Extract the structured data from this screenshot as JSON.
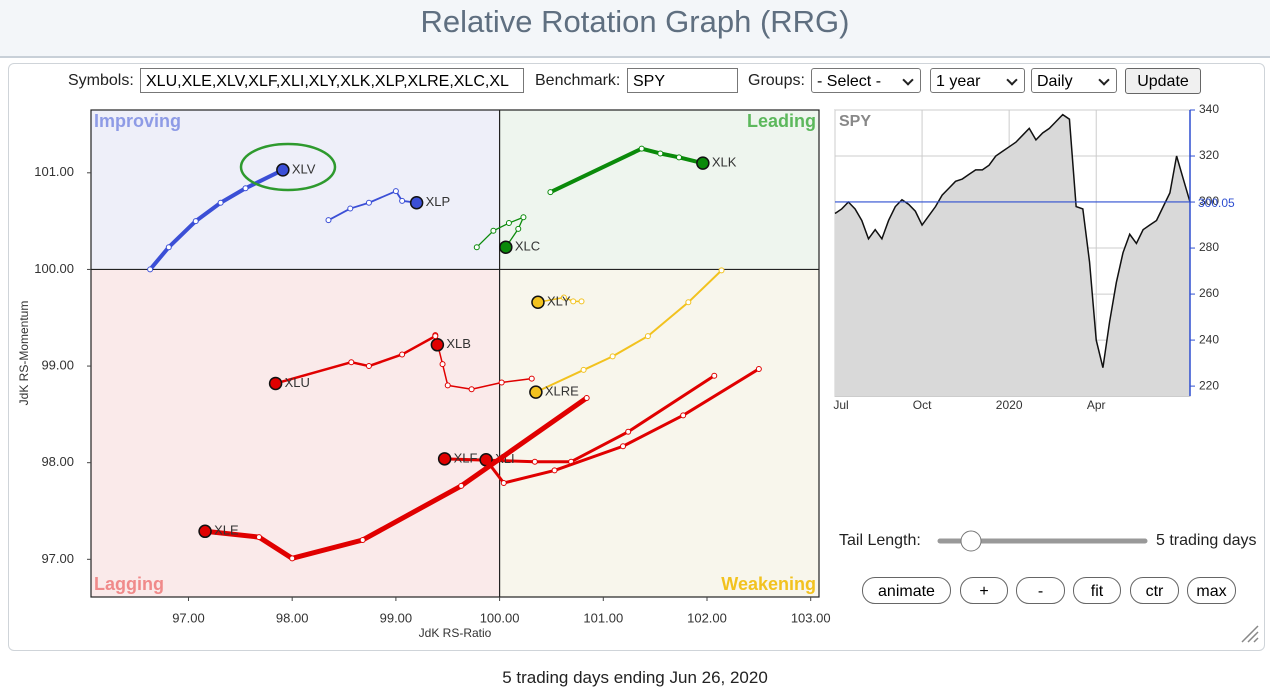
{
  "header": {
    "title": "Relative Rotation Graph (RRG)"
  },
  "controls": {
    "symbols_label": "Symbols:",
    "symbols_value": "XLU,XLE,XLV,XLF,XLI,XLY,XLK,XLP,XLRE,XLC,XL",
    "benchmark_label": "Benchmark:",
    "benchmark_value": "SPY",
    "groups_label": "Groups:",
    "groups_value": "- Select -",
    "period": "1 year",
    "interval": "Daily",
    "update": "Update"
  },
  "chart_data": [
    {
      "type": "rrg",
      "xlabel": "JdK RS-Ratio",
      "ylabel": "JdK RS-Momentum",
      "xlim": [
        96.06,
        103.08
      ],
      "ylim": [
        96.61,
        101.65
      ],
      "center": [
        100,
        100
      ],
      "xticks": [
        {
          "value": 97,
          "label": "97.00"
        },
        {
          "value": 98,
          "label": "98.00"
        },
        {
          "value": 99,
          "label": "99.00"
        },
        {
          "value": 100,
          "label": "100.00"
        },
        {
          "value": 101,
          "label": "101.00"
        },
        {
          "value": 102,
          "label": "102.00"
        },
        {
          "value": 103,
          "label": "103.00"
        }
      ],
      "yticks": [
        {
          "value": 97,
          "label": "97.00"
        },
        {
          "value": 98,
          "label": "98.00"
        },
        {
          "value": 99,
          "label": "99.00"
        },
        {
          "value": 100,
          "label": "100.00"
        },
        {
          "value": 101,
          "label": "101.00"
        }
      ],
      "quadrants": [
        {
          "label": "Improving",
          "color": "#8e9be6",
          "background": "#eeeff9"
        },
        {
          "label": "Leading",
          "color": "#5cb85c",
          "background": "#eef5ee"
        },
        {
          "label": "Lagging",
          "color": "#f08a8a",
          "background": "#faeaea"
        },
        {
          "label": "Weakening",
          "color": "#f2c21f",
          "background": "#f8f6ec"
        }
      ],
      "series": [
        {
          "name": "XLV",
          "color": "#3b4fd6",
          "width": 4,
          "x": [
            96.63,
            96.81,
            97.07,
            97.31,
            97.55,
            97.91
          ],
          "y": [
            100.0,
            100.23,
            100.5,
            100.69,
            100.84,
            101.03
          ]
        },
        {
          "name": "XLP",
          "color": "#3b4fd6",
          "width": 1.8,
          "x": [
            98.35,
            98.56,
            98.74,
            99.0,
            99.06,
            99.2
          ],
          "y": [
            100.51,
            100.63,
            100.69,
            100.81,
            100.71,
            100.69
          ]
        },
        {
          "name": "XLK",
          "color": "#0a8a0a",
          "width": 4,
          "x": [
            100.49,
            101.37,
            101.55,
            101.73,
            101.96
          ],
          "y": [
            100.8,
            101.25,
            101.2,
            101.16,
            101.1
          ]
        },
        {
          "name": "XLC",
          "color": "#0a8a0a",
          "width": 1.3,
          "x": [
            99.78,
            99.94,
            100.09,
            100.23,
            100.18,
            100.06
          ],
          "y": [
            100.23,
            100.4,
            100.48,
            100.54,
            100.42,
            100.23
          ]
        },
        {
          "name": "XLY",
          "color": "#f2c21f",
          "width": 1.5,
          "x": [
            100.79,
            100.71,
            100.62,
            100.37
          ],
          "y": [
            99.67,
            99.67,
            99.71,
            99.66
          ]
        },
        {
          "name": "XLRE",
          "color": "#f2c21f",
          "width": 2,
          "x": [
            102.14,
            101.82,
            101.43,
            101.09,
            100.81,
            100.35
          ],
          "y": [
            99.99,
            99.66,
            99.31,
            99.1,
            98.96,
            98.73
          ]
        },
        {
          "name": "XLB",
          "color": "#e00000",
          "width": 1.5,
          "x": [
            100.31,
            100.02,
            99.73,
            99.5,
            99.45,
            99.38,
            99.4
          ],
          "y": [
            98.87,
            98.83,
            98.76,
            98.8,
            99.02,
            99.32,
            99.22
          ]
        },
        {
          "name": "XLU",
          "color": "#e00000",
          "width": 2.5,
          "x": [
            99.38,
            99.06,
            98.74,
            98.57,
            97.84
          ],
          "y": [
            99.31,
            99.12,
            99.0,
            99.04,
            98.82
          ]
        },
        {
          "name": "XLF",
          "color": "#e00000",
          "width": 3,
          "x": [
            102.07,
            101.24,
            100.69,
            100.34,
            99.47
          ],
          "y": [
            98.9,
            98.32,
            98.01,
            98.01,
            98.04
          ]
        },
        {
          "name": "XLI",
          "color": "#e00000",
          "width": 3,
          "x": [
            102.5,
            101.77,
            101.19,
            100.53,
            100.04,
            99.87
          ],
          "y": [
            98.97,
            98.49,
            98.17,
            97.92,
            97.79,
            98.03
          ]
        },
        {
          "name": "XLE",
          "color": "#e00000",
          "width": 5,
          "x": [
            100.84,
            99.63,
            98.68,
            98.0,
            97.68,
            97.16
          ],
          "y": [
            98.67,
            97.76,
            97.2,
            97.01,
            97.23,
            97.29
          ]
        }
      ]
    },
    {
      "type": "area",
      "title": "SPY",
      "color": "#111111",
      "fill": "#d9d9d9",
      "last_color": "#2f4fd0",
      "categories": [
        "Jul",
        null,
        null,
        null,
        null,
        null,
        null,
        null,
        null,
        null,
        null,
        null,
        null,
        "Oct",
        null,
        null,
        null,
        null,
        null,
        null,
        null,
        null,
        null,
        null,
        null,
        null,
        "2020",
        null,
        null,
        null,
        null,
        null,
        null,
        null,
        null,
        null,
        null,
        null,
        null,
        "Apr",
        null,
        null,
        null,
        null,
        null,
        null,
        null,
        null,
        null,
        null,
        null,
        null,
        null,
        null
      ],
      "values": [
        295,
        297,
        300,
        297,
        292,
        284,
        288,
        284,
        292,
        298,
        301,
        299,
        296,
        290,
        294,
        298,
        303,
        306,
        309,
        310,
        312,
        314,
        314,
        316,
        320,
        322,
        324,
        326,
        329,
        332,
        327,
        330,
        332,
        335,
        338,
        336,
        298,
        297,
        274,
        240,
        228,
        248,
        265,
        278,
        286,
        282,
        288,
        290,
        292,
        298,
        304,
        320,
        310,
        300.05
      ],
      "ylim": [
        215.7,
        340
      ],
      "yticks": [
        220,
        240,
        260,
        280,
        300,
        320,
        340
      ],
      "grid": true
    }
  ],
  "tail": {
    "label": "Tail Length:",
    "value_text": "5 trading days"
  },
  "buttons": [
    "animate",
    "+",
    "-",
    "fit",
    "ctr",
    "max"
  ],
  "footer": "5 trading days ending Jun 26, 2020"
}
